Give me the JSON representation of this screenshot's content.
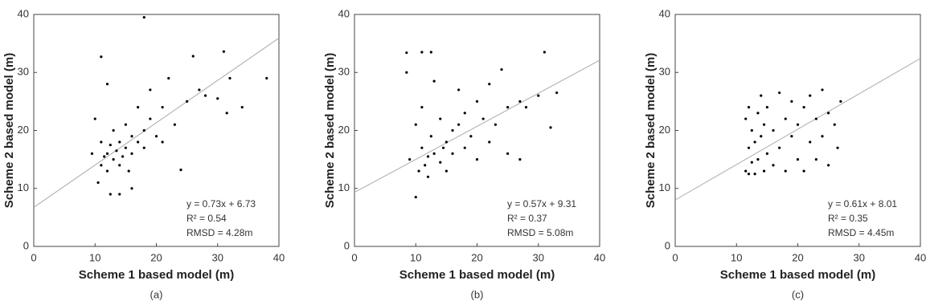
{
  "chart_data": [
    {
      "type": "scatter",
      "caption": "(a)",
      "xlabel": "Scheme 1 based model (m)",
      "ylabel": "Scheme 2 based model (m)",
      "xlim": [
        0,
        40
      ],
      "ylim": [
        0,
        40
      ],
      "xticks": [
        0,
        10,
        20,
        30,
        40
      ],
      "yticks": [
        0,
        10,
        20,
        30,
        40
      ],
      "fit": {
        "slope": 0.73,
        "intercept": 6.73
      },
      "annotations": [
        "y = 0.73x + 6.73",
        "R² = 0.54",
        "RMSD = 4.28m"
      ],
      "x": [
        9.5,
        10,
        10.5,
        11,
        11,
        11.5,
        12,
        12,
        12.5,
        12.5,
        13,
        13,
        13.5,
        14,
        14,
        14.5,
        15,
        15,
        15.5,
        16,
        16,
        17,
        17,
        18,
        18,
        19,
        19,
        20,
        21,
        21,
        22,
        23,
        24,
        25,
        26,
        27,
        28,
        30,
        31,
        31.5,
        32,
        34,
        38,
        18,
        11,
        12,
        14,
        16
      ],
      "y": [
        16,
        22,
        11,
        14,
        18,
        15.5,
        13,
        16,
        17.5,
        9,
        15,
        20,
        16.5,
        14,
        18,
        15.5,
        17,
        21,
        13,
        19,
        16,
        18,
        24,
        20,
        17,
        22,
        27,
        19,
        24,
        18,
        29,
        21,
        13.2,
        25,
        32.8,
        27,
        26,
        25.5,
        33.6,
        23,
        29,
        24,
        29,
        39.5,
        32.7,
        28,
        9,
        10
      ]
    },
    {
      "type": "scatter",
      "caption": "(b)",
      "xlabel": "Scheme 1 based model (m)",
      "ylabel": "Scheme 2 based model (m)",
      "xlim": [
        0,
        40
      ],
      "ylim": [
        0,
        40
      ],
      "xticks": [
        0,
        10,
        20,
        30,
        40
      ],
      "yticks": [
        0,
        10,
        20,
        30,
        40
      ],
      "fit": {
        "slope": 0.57,
        "intercept": 9.31
      },
      "annotations": [
        "y = 0.57x + 9.31",
        "R² = 0.37",
        "RMSD = 5.08m"
      ],
      "x": [
        8.5,
        8.5,
        9,
        10,
        10,
        10.5,
        11,
        11,
        11.5,
        12,
        12,
        12.5,
        12.5,
        13,
        13,
        14,
        14,
        14.5,
        15,
        15,
        16,
        16,
        17,
        17,
        18,
        18,
        19,
        20,
        20,
        21,
        22,
        22,
        23,
        24,
        25,
        25,
        27,
        27,
        28,
        30,
        31,
        32,
        33,
        11
      ],
      "y": [
        33.4,
        30,
        15,
        8.5,
        21,
        13,
        17,
        24,
        14,
        15.5,
        12,
        33.5,
        19,
        16,
        28.5,
        14.5,
        22,
        17,
        18,
        13,
        20,
        16,
        21,
        27,
        17,
        23,
        19,
        25,
        15,
        22,
        28,
        18,
        21,
        30.5,
        24,
        16,
        25,
        15,
        24,
        26,
        33.5,
        20.5,
        26.5,
        33.5
      ]
    },
    {
      "type": "scatter",
      "caption": "(c)",
      "xlabel": "Scheme 1 based model (m)",
      "ylabel": "Scheme 2 based model (m)",
      "xlim": [
        0,
        40
      ],
      "ylim": [
        0,
        40
      ],
      "xticks": [
        0,
        10,
        20,
        30,
        40
      ],
      "yticks": [
        0,
        10,
        20,
        30,
        40
      ],
      "fit": {
        "slope": 0.61,
        "intercept": 8.01
      },
      "annotations": [
        "y = 0.61x + 8.01",
        "R² = 0.35",
        "RMSD = 4.45m"
      ],
      "x": [
        11.5,
        11.5,
        12,
        12,
        12.5,
        12.5,
        13,
        13,
        13.5,
        13.5,
        14,
        14,
        14.5,
        14.5,
        15,
        15,
        16,
        16,
        17,
        17,
        18,
        18,
        19,
        19,
        20,
        20,
        21,
        21,
        22,
        22,
        23,
        23,
        24,
        24,
        25,
        25,
        26,
        26.5,
        27,
        12
      ],
      "y": [
        13,
        22,
        17,
        24,
        14.5,
        20,
        12.5,
        18,
        23,
        15,
        26,
        19,
        13,
        21,
        16,
        24,
        14,
        20,
        26.5,
        17,
        13,
        22,
        19,
        25,
        15,
        21,
        24,
        13,
        18,
        26,
        22,
        15,
        27,
        19,
        14,
        23,
        21,
        17,
        25,
        12.5
      ]
    }
  ]
}
